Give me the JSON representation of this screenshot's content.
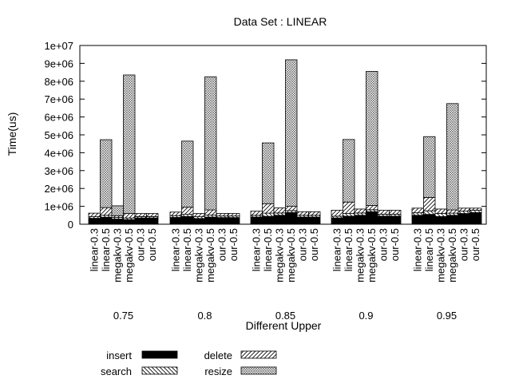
{
  "chart_data": {
    "type": "bar",
    "title": "Data Set : LINEAR",
    "xlabel": "Different Upper",
    "ylabel": "Time(us)",
    "ylim": [
      0,
      10000000
    ],
    "yticks": [
      "0",
      "1e+06",
      "2e+06",
      "3e+06",
      "4e+06",
      "5e+06",
      "6e+06",
      "7e+06",
      "8e+06",
      "9e+06",
      "1e+07"
    ],
    "groups": [
      "0.75",
      "0.8",
      "0.85",
      "0.9",
      "0.95"
    ],
    "bars": [
      "linear-0.3",
      "linear-0.5",
      "megakv-0.3",
      "megakv-0.5",
      "our-0.3",
      "our-0.5"
    ],
    "stacked": true,
    "legend_position": "bottom",
    "series": [
      {
        "name": "insert",
        "pattern": "solid",
        "values": [
          [
            330000,
            390000,
            290000,
            260000,
            350000,
            350000
          ],
          [
            380000,
            430000,
            320000,
            400000,
            370000,
            370000
          ],
          [
            400000,
            440000,
            500000,
            650000,
            400000,
            400000
          ],
          [
            350000,
            450000,
            500000,
            700000,
            450000,
            450000
          ],
          [
            500000,
            550000,
            430000,
            500000,
            600000,
            650000
          ]
        ]
      },
      {
        "name": "search",
        "pattern": "backslash-hatch",
        "values": [
          [
            90000,
            110000,
            90000,
            90000,
            80000,
            80000
          ],
          [
            100000,
            120000,
            100000,
            110000,
            90000,
            90000
          ],
          [
            100000,
            180000,
            130000,
            110000,
            100000,
            100000
          ],
          [
            100000,
            150000,
            130000,
            110000,
            110000,
            110000
          ],
          [
            140000,
            200000,
            180000,
            120000,
            130000,
            130000
          ]
        ]
      },
      {
        "name": "delete",
        "pattern": "slash-hatch",
        "values": [
          [
            200000,
            430000,
            100000,
            250000,
            170000,
            170000
          ],
          [
            200000,
            400000,
            180000,
            290000,
            140000,
            140000
          ],
          [
            230000,
            530000,
            280000,
            240000,
            200000,
            200000
          ],
          [
            330000,
            640000,
            220000,
            240000,
            220000,
            220000
          ],
          [
            260000,
            750000,
            240000,
            180000,
            170000,
            120000
          ]
        ]
      },
      {
        "name": "resize",
        "pattern": "crosshatch",
        "values": [
          [
            0,
            3800000,
            550000,
            7750000,
            0,
            0
          ],
          [
            0,
            3700000,
            0,
            7450000,
            0,
            0
          ],
          [
            0,
            3400000,
            0,
            8200000,
            0,
            0
          ],
          [
            0,
            3500000,
            0,
            7500000,
            0,
            0
          ],
          [
            0,
            3400000,
            0,
            5950000,
            0,
            0
          ]
        ]
      }
    ]
  }
}
